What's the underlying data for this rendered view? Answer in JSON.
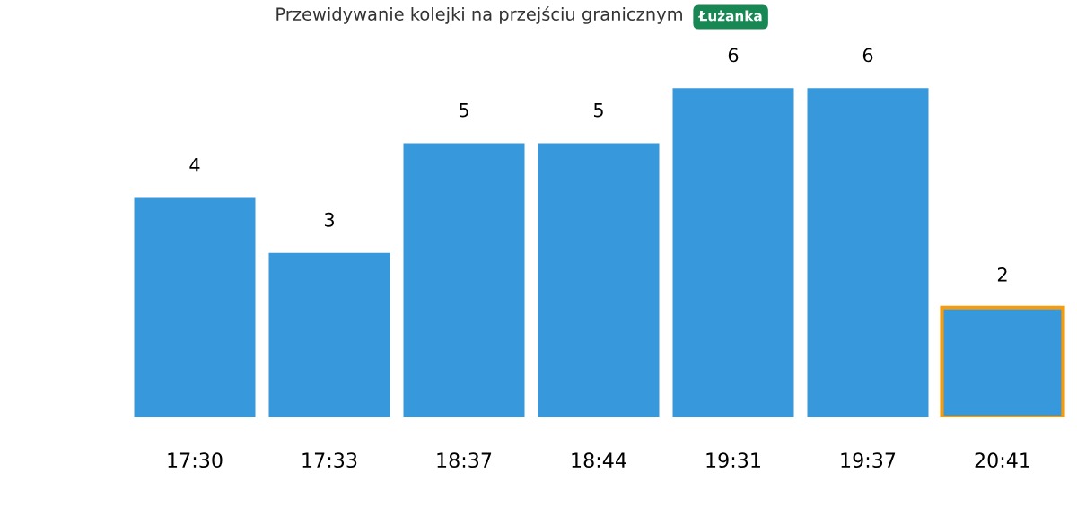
{
  "chart_data": {
    "type": "bar",
    "title": "Przewidywanie kolejki na przejściu granicznym",
    "subtitle": "Łużanka",
    "categories": [
      "17:30",
      "17:33",
      "18:37",
      "18:44",
      "19:31",
      "19:37",
      "20:41"
    ],
    "values": [
      4,
      3,
      5,
      5,
      6,
      6,
      2
    ],
    "color": "#3798db",
    "data_labels": true,
    "grid": false,
    "legend": false
  }
}
